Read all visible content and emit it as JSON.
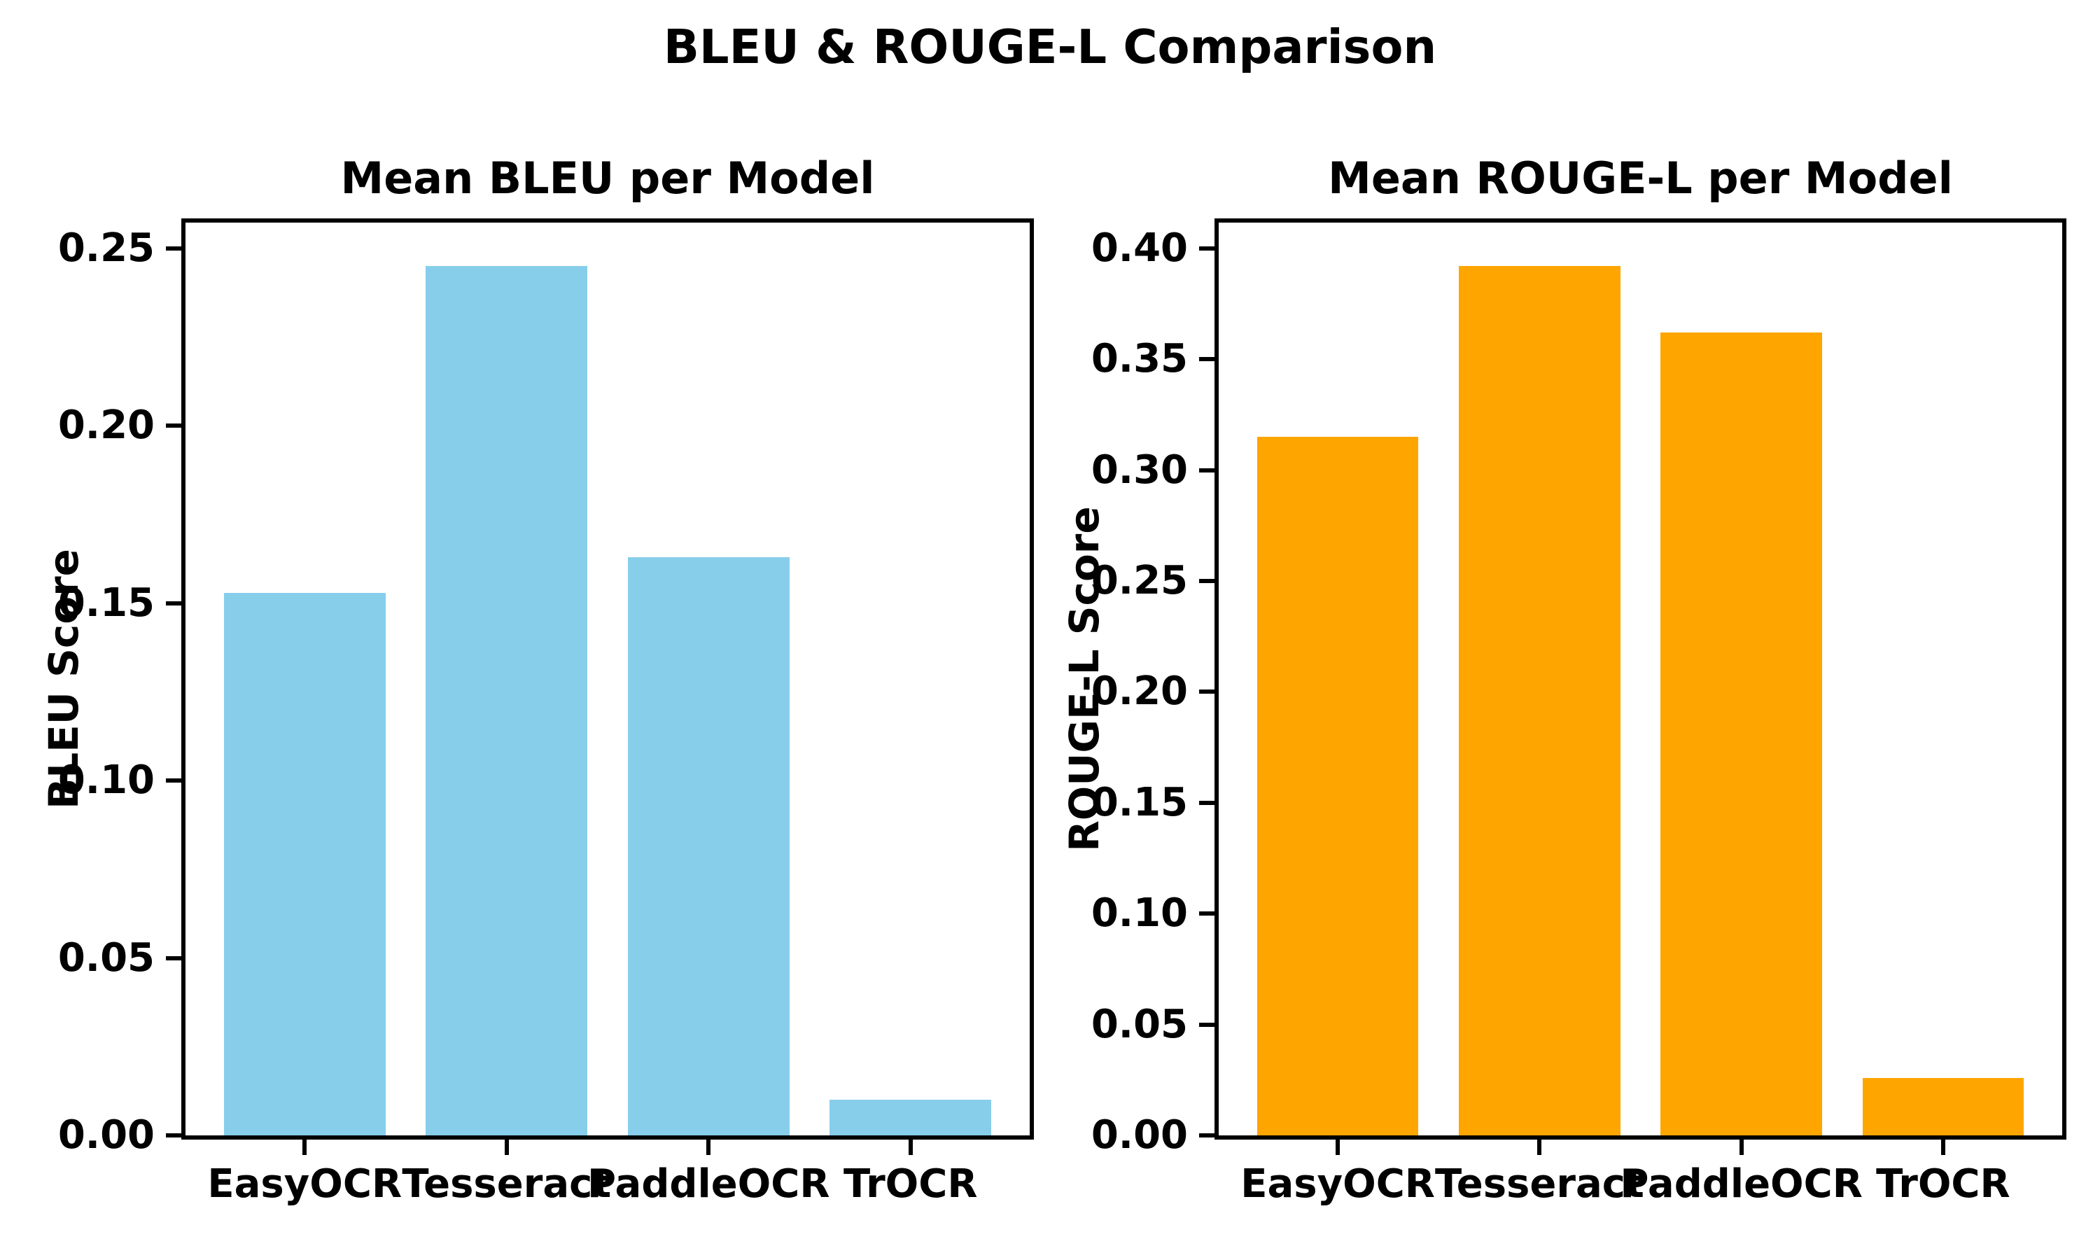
{
  "figure": {
    "suptitle": "BLEU & ROUGE-L Comparison",
    "background_color": "#ffffff",
    "text_color": "#000000"
  },
  "chart_data": [
    {
      "type": "bar",
      "title": "Mean BLEU per Model",
      "xlabel": "",
      "ylabel": "BLEU Score",
      "categories": [
        "EasyOCR",
        "Tesseract",
        "PaddleOCR",
        "TrOCR"
      ],
      "values": [
        0.153,
        0.245,
        0.163,
        0.01
      ],
      "bar_color": "#87CEEB",
      "bar_color_name": "skyblue",
      "yticks": [
        0.0,
        0.05,
        0.1,
        0.15,
        0.2,
        0.25
      ],
      "ytick_labels": [
        "0.00",
        "0.05",
        "0.10",
        "0.15",
        "0.20",
        "0.25"
      ],
      "ylim": [
        0,
        0.2573
      ],
      "xlim": [
        -0.59,
        3.59
      ],
      "bar_width_units": 0.8,
      "grid": false,
      "legend": null
    },
    {
      "type": "bar",
      "title": "Mean ROUGE-L per Model",
      "xlabel": "",
      "ylabel": "ROUGE-L Score",
      "categories": [
        "EasyOCR",
        "Tesseract",
        "PaddleOCR",
        "TrOCR"
      ],
      "values": [
        0.315,
        0.392,
        0.362,
        0.026
      ],
      "bar_color": "#FFA500",
      "bar_color_name": "orange",
      "yticks": [
        0.0,
        0.05,
        0.1,
        0.15,
        0.2,
        0.25,
        0.3,
        0.35,
        0.4
      ],
      "ytick_labels": [
        "0.00",
        "0.05",
        "0.10",
        "0.15",
        "0.20",
        "0.25",
        "0.30",
        "0.35",
        "0.40"
      ],
      "ylim": [
        0,
        0.4116
      ],
      "xlim": [
        -0.59,
        3.59
      ],
      "bar_width_units": 0.8,
      "grid": false,
      "legend": null
    }
  ]
}
